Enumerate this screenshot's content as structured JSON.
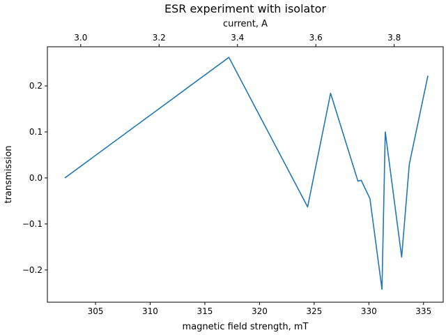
{
  "chart_data": {
    "type": "line",
    "title": "ESR experiment with isolator",
    "xlabel": "magnetic field strength, mT",
    "ylabel": "transmission",
    "secondary_xlabel": "current, A",
    "xlim": [
      300.6,
      336.8
    ],
    "ylim": [
      -0.27,
      0.285
    ],
    "secondary_xlim": [
      2.915,
      3.925
    ],
    "x_ticks": [
      305,
      310,
      315,
      320,
      325,
      330,
      335
    ],
    "x_tick_labels": [
      "305",
      "310",
      "315",
      "320",
      "325",
      "330",
      "335"
    ],
    "y_ticks": [
      -0.2,
      -0.1,
      0.0,
      0.1,
      0.2
    ],
    "y_tick_labels": [
      "−0.2",
      "−0.1",
      "0.0",
      "0.1",
      "0.2"
    ],
    "secondary_x_ticks": [
      3.0,
      3.2,
      3.4,
      3.6,
      3.8
    ],
    "secondary_x_tick_labels": [
      "3.0",
      "3.2",
      "3.4",
      "3.6",
      "3.8"
    ],
    "grid": false,
    "legend": "none",
    "series": [
      {
        "color": "#1f77b4",
        "x": [
          302.2,
          317.2,
          324.4,
          326.5,
          329.0,
          329.3,
          330.1,
          331.2,
          331.5,
          333.0,
          333.7,
          335.4
        ],
        "y": [
          0.0,
          0.262,
          -0.063,
          0.184,
          -0.007,
          -0.005,
          -0.045,
          -0.242,
          0.1,
          -0.172,
          0.03,
          0.222
        ]
      }
    ]
  }
}
